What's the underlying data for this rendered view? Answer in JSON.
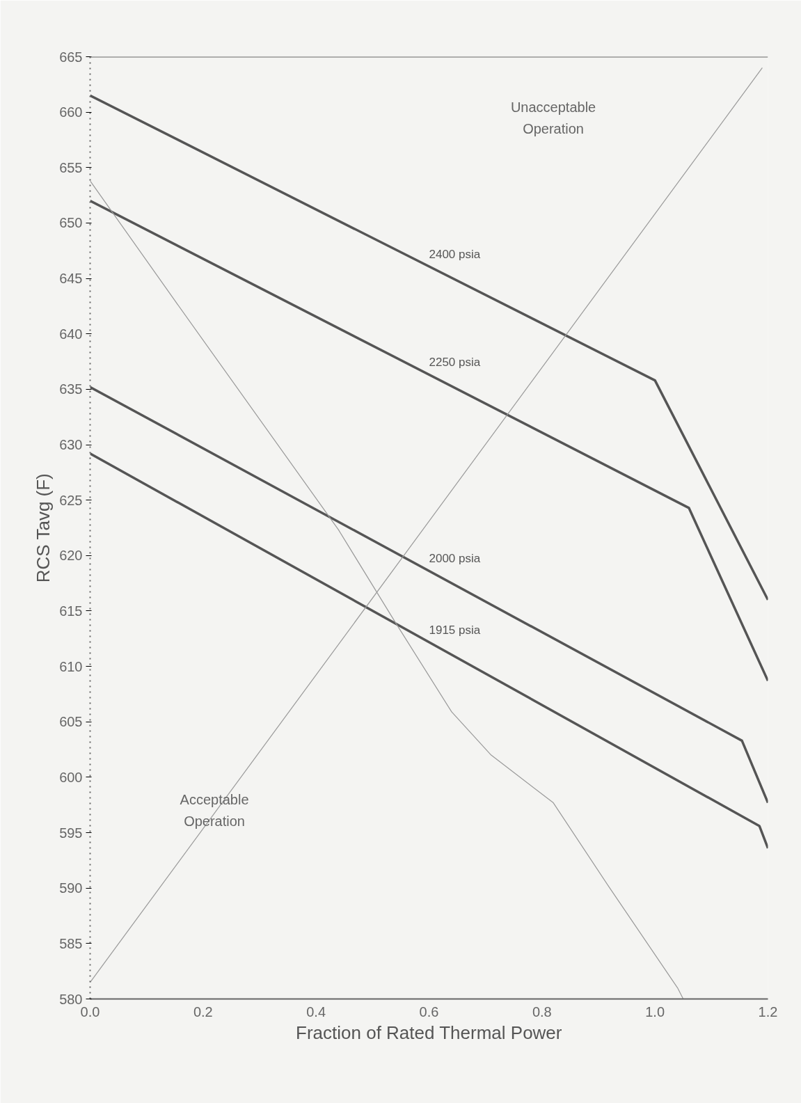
{
  "chart_data": {
    "type": "line",
    "xlabel": "Fraction of Rated Thermal Power",
    "ylabel": "RCS Tavg (F)",
    "xlim": [
      0,
      1.2
    ],
    "ylim": [
      580,
      665
    ],
    "xticks": [
      {
        "value": 0,
        "label": "0.0"
      },
      0.2,
      0.4,
      0.6,
      0.8,
      {
        "value": 1,
        "label": "1.0"
      },
      1.2
    ],
    "yticks": [
      580,
      585,
      590,
      595,
      600,
      605,
      610,
      615,
      620,
      625,
      630,
      635,
      640,
      645,
      650,
      655,
      660,
      665
    ],
    "grid": false,
    "series": [
      {
        "name": "2400 psia",
        "color": "#555555",
        "x": [
          0,
          1.0,
          1.2
        ],
        "values": [
          661.5,
          635.8,
          616
        ]
      },
      {
        "name": "2250 psia",
        "color": "#555555",
        "x": [
          0,
          1.06,
          1.2
        ],
        "values": [
          652,
          624.3,
          608.7
        ]
      },
      {
        "name": "2000 psia",
        "color": "#555555",
        "x": [
          0,
          1.154,
          1.2
        ],
        "values": [
          635.2,
          603.3,
          597.7
        ]
      },
      {
        "name": "1915 psia",
        "color": "#555555",
        "x": [
          0,
          1.185,
          1.2
        ],
        "values": [
          629.2,
          595.6,
          593.6
        ]
      },
      {
        "color": "#999999",
        "x": [
          0,
          1.19
        ],
        "values": [
          581.5,
          664
        ]
      },
      {
        "color": "#999999",
        "x": [
          0,
          0.15,
          0.44,
          0.54,
          0.64,
          0.71,
          0.82,
          0.92,
          1.04,
          1.05
        ],
        "values": [
          653.8,
          643,
          622.3,
          614,
          605.9,
          602,
          597.7,
          590,
          581,
          580
        ]
      }
    ],
    "annotations": [
      "Unacceptable\nOperation",
      "Acceptable\nOperation"
    ]
  }
}
